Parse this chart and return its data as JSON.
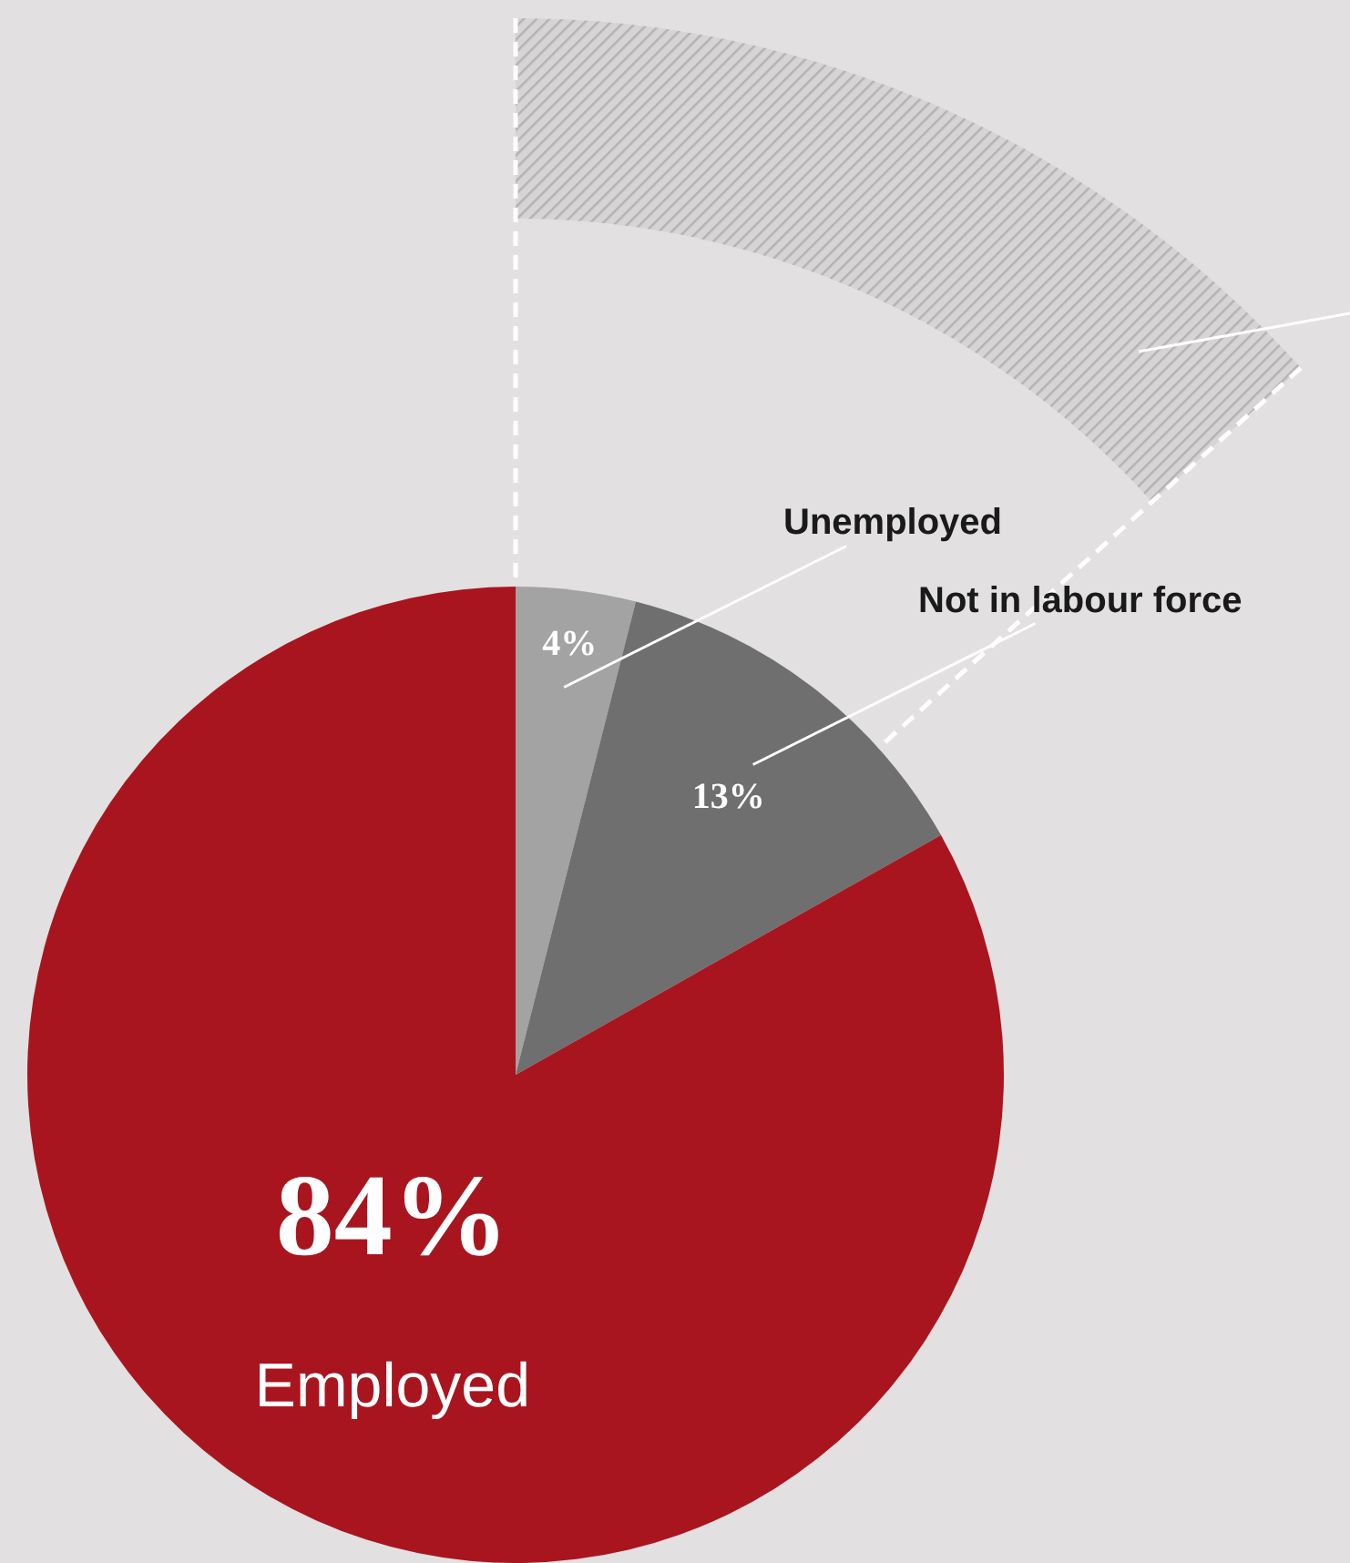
{
  "chart_data": {
    "type": "pie",
    "categories": [
      "Unemployed",
      "Not in labour force",
      "Employed"
    ],
    "values": [
      4,
      13,
      84
    ],
    "colors": [
      "#a3a3a3",
      "#6f6f6f",
      "#a9151f"
    ],
    "value_labels": [
      "4%",
      "13%",
      "84%"
    ]
  }
}
